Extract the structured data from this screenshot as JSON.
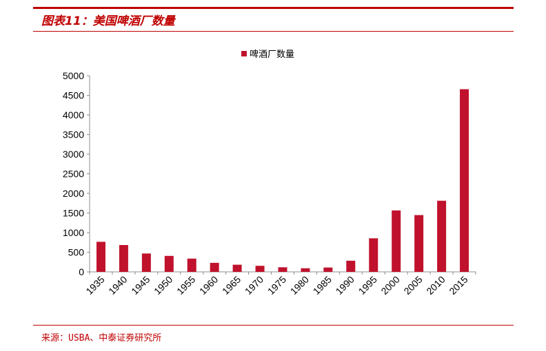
{
  "figure": {
    "title": "图表11：美国啤酒厂数量",
    "source": "来源：USBA、中泰证券研究所"
  },
  "colors": {
    "accent": "#c00000",
    "bar": "#c0122c"
  },
  "chart_data": {
    "type": "bar",
    "title": "",
    "xlabel": "",
    "ylabel": "",
    "categories": [
      "1935",
      "1940",
      "1945",
      "1950",
      "1955",
      "1960",
      "1965",
      "1970",
      "1975",
      "1980",
      "1985",
      "1990",
      "1995",
      "2000",
      "2005",
      "2010",
      "2015"
    ],
    "series": [
      {
        "name": "啤酒厂数量",
        "values": [
          766,
          684,
          468,
          407,
          338,
          230,
          182,
          154,
          117,
          92,
          110,
          284,
          855,
          1566,
          1447,
          1813,
          4656
        ]
      }
    ],
    "ylim": [
      0,
      5000
    ],
    "yticks": [
      0,
      500,
      1000,
      1500,
      2000,
      2500,
      3000,
      3500,
      4000,
      4500,
      5000
    ],
    "legend": "top-center",
    "grid": false
  }
}
